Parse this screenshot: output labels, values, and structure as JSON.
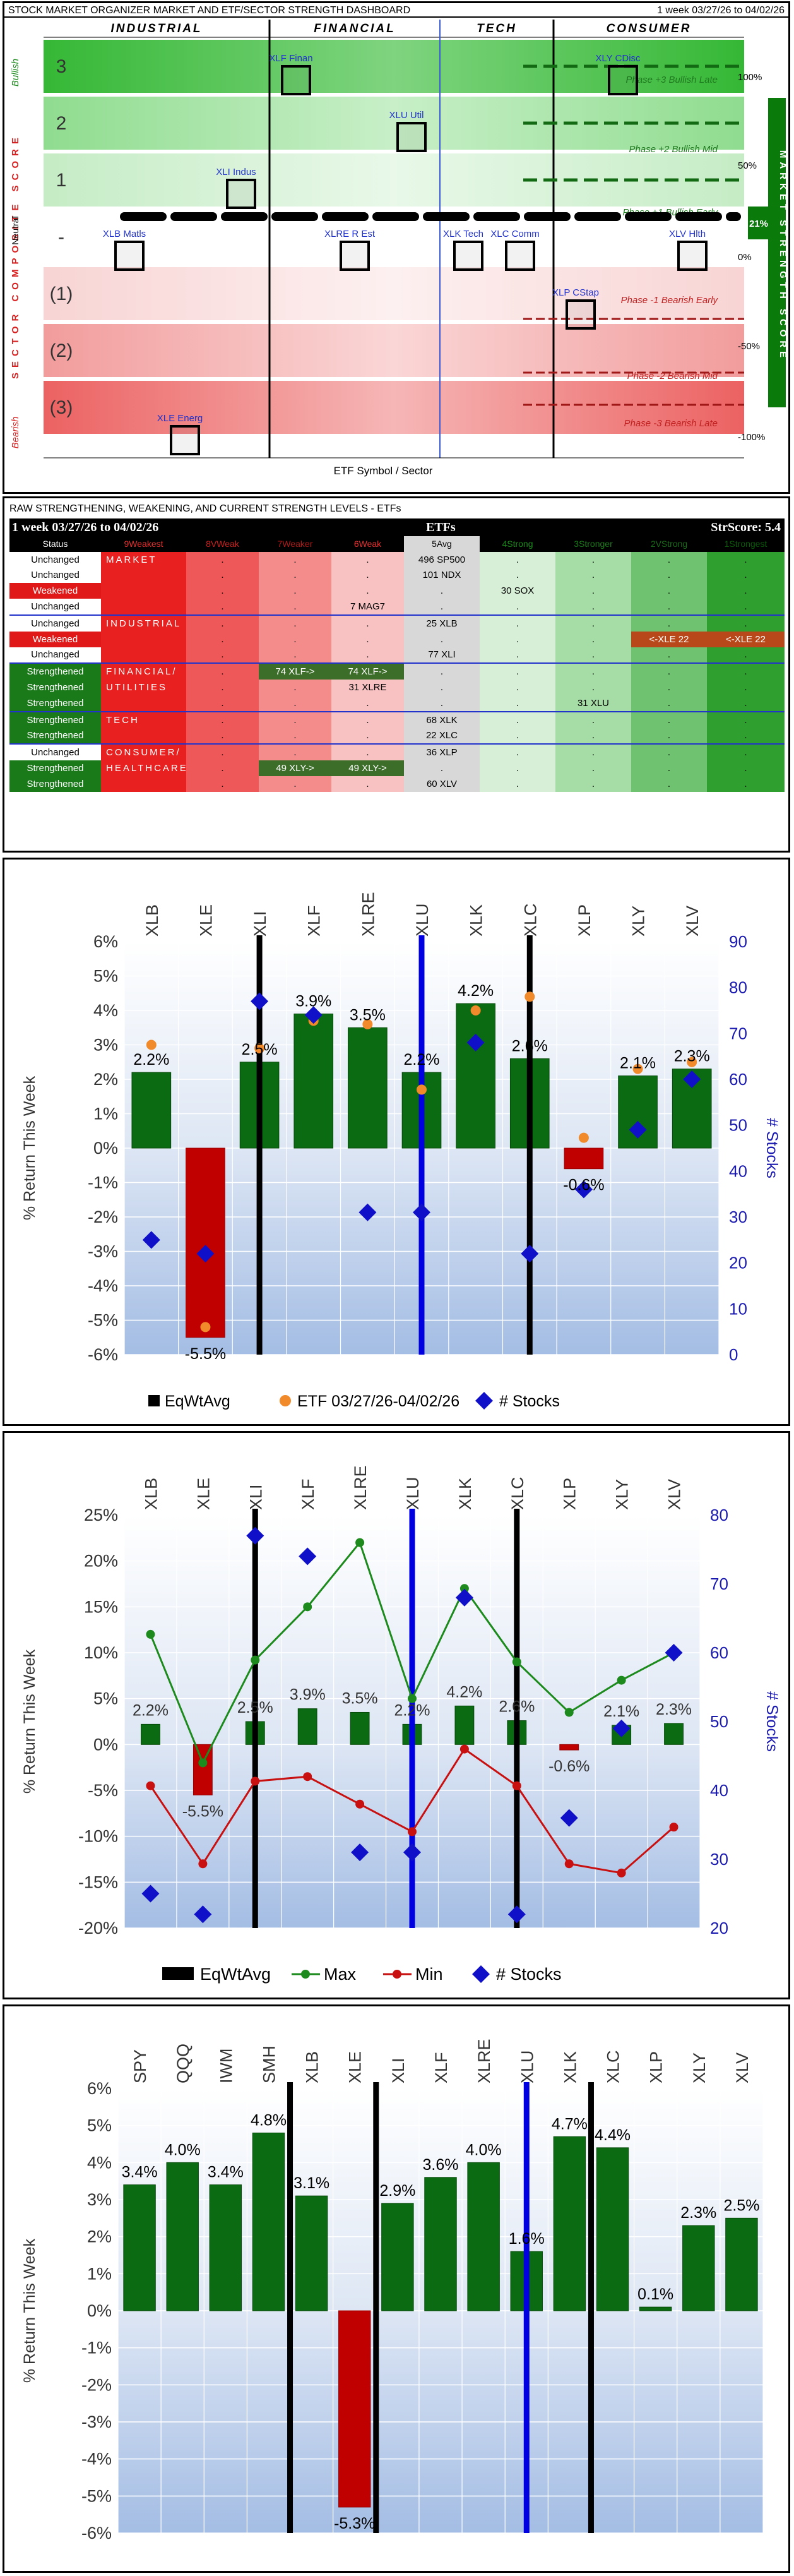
{
  "dashboard": {
    "title": "STOCK MARKET ORGANIZER MARKET AND ETF/SECTOR STRENGTH DASHBOARD",
    "week": "1 week 03/27/26 to 04/02/26",
    "sectors": [
      "INDUSTRIAL",
      "FINANCIAL",
      "TECH",
      "CONSUMER"
    ],
    "left_axis_label": "SECTOR COMPOSITE SCORE",
    "bullish_label": "Bullish",
    "neutral_label": "Neutral",
    "bearish_label": "Bearish",
    "right_axis_label": "MARKET STRENGTH SCORE",
    "market_strength_value": "21%",
    "pct_labels": [
      "100%",
      "50%",
      "0%",
      "-50%",
      "-100%"
    ],
    "levels": [
      "3",
      "2",
      "1",
      "-",
      "(1)",
      "(2)",
      "(3)"
    ],
    "phases": [
      "Phase +3 Bullish Late",
      "Phase +2 Bullish Mid",
      "Phase +1 Bullish Early",
      "Phase -1 Bearish Early",
      "Phase -2 Bearish Mid",
      "Phase -3 Bearish Late"
    ],
    "xlabel": "ETF Symbol / Sector",
    "etfs": [
      {
        "label": "XLF Finan",
        "level": 3
      },
      {
        "label": "XLY CDisc",
        "level": 3
      },
      {
        "label": "XLU Util",
        "level": 2
      },
      {
        "label": "XLI Indus",
        "level": 1
      },
      {
        "label": "XLB Matls",
        "level": 0
      },
      {
        "label": "XLRE R Est",
        "level": 0
      },
      {
        "label": "XLK Tech",
        "level": 0
      },
      {
        "label": "XLC Comm",
        "level": 0
      },
      {
        "label": "XLV Hlth",
        "level": 0
      },
      {
        "label": "XLP CStap",
        "level": -1
      },
      {
        "label": "XLE Energ",
        "level": -3
      }
    ]
  },
  "strength_table": {
    "title": "RAW STRENGTHENING, WEAKENING, AND CURRENT STRENGTH LEVELS - ETFs",
    "period": "1 week 03/27/26 to 04/02/26",
    "etfs_label": "ETFs",
    "strscore": "StrScore: 5.4",
    "headers": [
      "Status",
      "9Weakest",
      "8VWeak",
      "7Weaker",
      "6Weak",
      "5Avg",
      "4Strong",
      "3Stronger",
      "2VStrong",
      "1Strongest"
    ],
    "rows": [
      {
        "status": "Unchanged",
        "group": "MARKET",
        "cells": [
          ".",
          ".",
          ".",
          "496 SP500",
          ".",
          ".",
          ".",
          "."
        ]
      },
      {
        "status": "Unchanged",
        "group": "",
        "cells": [
          ".",
          ".",
          ".",
          "101 NDX",
          ".",
          ".",
          ".",
          "."
        ]
      },
      {
        "status": "Weakened",
        "group": "",
        "cells": [
          ".",
          ".",
          ".",
          ".",
          "30 SOX",
          ".",
          ".",
          "."
        ]
      },
      {
        "status": "Unchanged",
        "group": "",
        "cells": [
          ".",
          ".",
          "7 MAG7",
          ".",
          ".",
          ".",
          ".",
          "."
        ]
      },
      {
        "status": "Unchanged",
        "group": "INDUSTRIAL",
        "cells": [
          ".",
          ".",
          ".",
          "25 XLB",
          ".",
          ".",
          ".",
          "."
        ]
      },
      {
        "status": "Weakened",
        "group": "",
        "cells": [
          ".",
          ".",
          ".",
          ".",
          ".",
          ".",
          "<-XLE 22",
          "<-XLE 22"
        ]
      },
      {
        "status": "Unchanged",
        "group": "",
        "cells": [
          ".",
          ".",
          ".",
          "77 XLI",
          ".",
          ".",
          ".",
          "."
        ]
      },
      {
        "status": "Strengthened",
        "group": "FINANCIAL/",
        "cells": [
          ".",
          "74 XLF->",
          "74 XLF->",
          ".",
          ".",
          ".",
          ".",
          "."
        ]
      },
      {
        "status": "Strengthened",
        "group": "UTILITIES",
        "cells": [
          ".",
          ".",
          "31 XLRE",
          ".",
          ".",
          ".",
          ".",
          "."
        ]
      },
      {
        "status": "Strengthened",
        "group": "",
        "cells": [
          ".",
          ".",
          ".",
          ".",
          ".",
          "31 XLU",
          ".",
          "."
        ]
      },
      {
        "status": "Strengthened",
        "group": "TECH",
        "cells": [
          ".",
          ".",
          ".",
          "68 XLK",
          ".",
          ".",
          ".",
          "."
        ]
      },
      {
        "status": "Strengthened",
        "group": "",
        "cells": [
          ".",
          ".",
          ".",
          "22 XLC",
          ".",
          ".",
          ".",
          "."
        ]
      },
      {
        "status": "Unchanged",
        "group": "CONSUMER/",
        "cells": [
          ".",
          ".",
          ".",
          "36 XLP",
          ".",
          ".",
          ".",
          "."
        ]
      },
      {
        "status": "Strengthened",
        "group": "HEALTHCARE",
        "cells": [
          ".",
          "49 XLY->",
          "49 XLY->",
          ".",
          ".",
          ".",
          ".",
          "."
        ]
      },
      {
        "status": "Strengthened",
        "group": "",
        "cells": [
          ".",
          ".",
          ".",
          "60 XLV",
          ".",
          ".",
          ".",
          "."
        ]
      }
    ]
  },
  "chart_data": [
    {
      "type": "bar",
      "categories": [
        "XLB",
        "XLE",
        "XLI",
        "XLF",
        "XLRE",
        "XLU",
        "XLK",
        "XLC",
        "XLP",
        "XLY",
        "XLV"
      ],
      "series": [
        {
          "name": "EqWtAvg",
          "values": [
            2.2,
            -5.5,
            2.5,
            3.9,
            3.5,
            2.2,
            4.2,
            2.6,
            -0.6,
            2.1,
            2.3
          ]
        },
        {
          "name": "ETF 03/27/26-04/02/26",
          "values": [
            3.0,
            -5.2,
            2.9,
            3.7,
            3.6,
            1.7,
            4.0,
            4.4,
            0.3,
            2.3,
            2.5
          ]
        },
        {
          "name": "# Stocks",
          "axis": "right",
          "values": [
            25,
            22,
            77,
            74,
            31,
            31,
            68,
            22,
            36,
            49,
            60
          ]
        }
      ],
      "bar_labels": [
        "2.2%",
        "-5.5%",
        "2.5%",
        "3.9%",
        "3.5%",
        "2.2%",
        "4.2%",
        "2.6%",
        "-0.6%",
        "2.1%",
        "2.3%"
      ],
      "ylabel": "% Return This Week",
      "y2label": "# Stocks",
      "ylim": [
        -6,
        6
      ],
      "y2lim": [
        0,
        90
      ],
      "yticks": [
        "6%",
        "5%",
        "4%",
        "3%",
        "2%",
        "1%",
        "0%",
        "-1%",
        "-2%",
        "-3%",
        "-4%",
        "-5%",
        "-6%"
      ],
      "y2ticks": [
        "90",
        "80",
        "70",
        "60",
        "50",
        "40",
        "30",
        "20",
        "10",
        "0"
      ],
      "legend": [
        "EqWtAvg",
        "ETF 03/27/26-04/02/26",
        "# Stocks"
      ]
    },
    {
      "type": "line",
      "categories": [
        "XLB",
        "XLE",
        "XLI",
        "XLF",
        "XLRE",
        "XLU",
        "XLK",
        "XLC",
        "XLP",
        "XLY",
        "XLV"
      ],
      "series": [
        {
          "name": "EqWtAvg",
          "values": [
            2.2,
            -5.5,
            2.5,
            3.9,
            3.5,
            2.2,
            4.2,
            2.6,
            -0.6,
            2.1,
            2.3
          ]
        },
        {
          "name": "Max",
          "values": [
            12.0,
            -2.0,
            9.2,
            15.0,
            22.0,
            5.0,
            17.0,
            9.0,
            3.5,
            7.0,
            10.0
          ]
        },
        {
          "name": "Min",
          "values": [
            -4.5,
            -13.0,
            -4.0,
            -3.5,
            -6.5,
            -9.5,
            -0.5,
            -4.5,
            -13.0,
            -14.0,
            -9.0
          ]
        },
        {
          "name": "# Stocks",
          "axis": "right",
          "values": [
            25,
            22,
            77,
            74,
            31,
            31,
            68,
            22,
            36,
            49,
            60
          ]
        }
      ],
      "bar_labels": [
        "2.2%",
        "-5.5%",
        "2.5%",
        "3.9%",
        "3.5%",
        "2.2%",
        "4.2%",
        "2.6%",
        "-0.6%",
        "2.1%",
        "2.3%"
      ],
      "ylabel": "% Return This Week",
      "y2label": "# Stocks",
      "ylim": [
        -20,
        25
      ],
      "y2lim": [
        20,
        80
      ],
      "yticks": [
        "25%",
        "20%",
        "15%",
        "10%",
        "5%",
        "0%",
        "-5%",
        "-10%",
        "-15%",
        "-20%"
      ],
      "y2ticks": [
        "80",
        "70",
        "60",
        "50",
        "40",
        "30",
        "20"
      ],
      "legend": [
        "EqWtAvg",
        "Max",
        "Min",
        "# Stocks"
      ]
    },
    {
      "type": "bar",
      "categories": [
        "SPY",
        "QQQ",
        "IWM",
        "SMH",
        "XLB",
        "XLE",
        "XLI",
        "XLF",
        "XLRE",
        "XLU",
        "XLK",
        "XLC",
        "XLP",
        "XLY",
        "XLV"
      ],
      "values": [
        3.4,
        4.0,
        3.4,
        4.8,
        3.1,
        -5.3,
        2.9,
        3.6,
        4.0,
        1.6,
        4.7,
        4.4,
        0.1,
        2.3,
        2.5
      ],
      "bar_labels": [
        "3.4%",
        "4.0%",
        "3.4%",
        "4.8%",
        "3.1%",
        "-5.3%",
        "2.9%",
        "3.6%",
        "4.0%",
        "1.6%",
        "4.7%",
        "4.4%",
        "0.1%",
        "2.3%",
        "2.5%"
      ],
      "ylabel": "% Return This Week",
      "ylim": [
        -6,
        6
      ],
      "yticks": [
        "6%",
        "5%",
        "4%",
        "3%",
        "2%",
        "1%",
        "0%",
        "-1%",
        "-2%",
        "-3%",
        "-4%",
        "-5%",
        "-6%"
      ]
    }
  ]
}
